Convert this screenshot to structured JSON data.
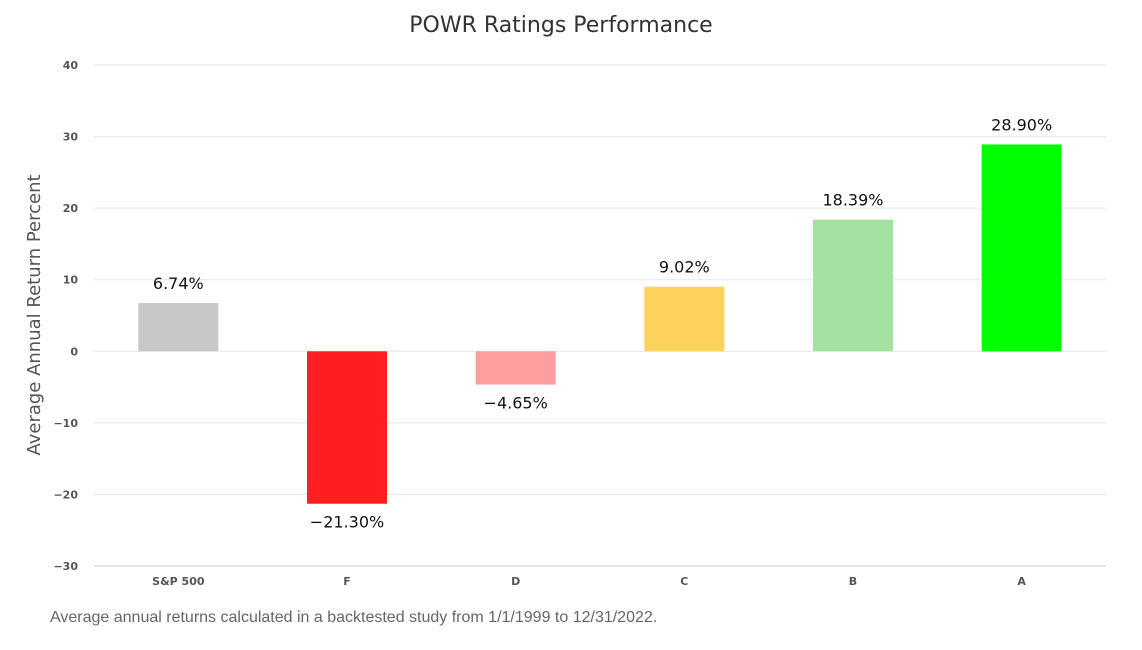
{
  "chart_data": {
    "type": "bar",
    "title": "POWR Ratings Performance",
    "xlabel": "",
    "ylabel": "Average Annual Return Percent",
    "ylim": [
      -30,
      40
    ],
    "yticks": [
      40,
      30,
      20,
      10,
      0,
      -10,
      -20,
      -30
    ],
    "grid": true,
    "legend": false,
    "categories": [
      "S&P 500",
      "F",
      "D",
      "C",
      "B",
      "A"
    ],
    "values": [
      6.74,
      -21.3,
      -4.65,
      9.02,
      18.39,
      28.9
    ],
    "data_labels": [
      "6.74%",
      "-21.30%",
      "-4.65%",
      "9.02%",
      "18.39%",
      "28.90%"
    ],
    "colors": [
      "#c8c8c8",
      "#ff1f1f",
      "#ff9e9e",
      "#fdd25c",
      "#a3e2a0",
      "#00fe00"
    ]
  },
  "footnote": "Average annual returns calculated in a backtested study from 1/1/1999 to 12/31/2022."
}
